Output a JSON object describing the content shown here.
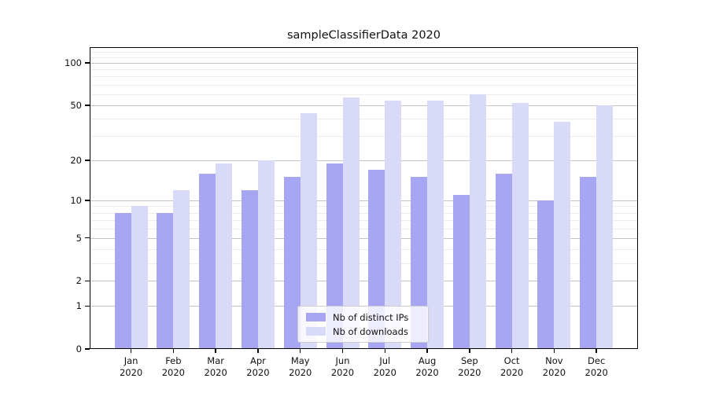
{
  "title": "sampleClassifierData 2020",
  "chart_data": {
    "type": "bar",
    "title": "sampleClassifierData 2020",
    "categories": [
      "Jan 2020",
      "Feb 2020",
      "Mar 2020",
      "Apr 2020",
      "May 2020",
      "Jun 2020",
      "Jul 2020",
      "Aug 2020",
      "Sep 2020",
      "Oct 2020",
      "Nov 2020",
      "Dec 2020"
    ],
    "months": [
      "Jan",
      "Feb",
      "Mar",
      "Apr",
      "May",
      "Jun",
      "Jul",
      "Aug",
      "Sep",
      "Oct",
      "Nov",
      "Dec"
    ],
    "year": "2020",
    "series": [
      {
        "name": "Nb of distinct IPs",
        "color": "#a6a6f3",
        "values": [
          8,
          8,
          16,
          12,
          15,
          19,
          17,
          15,
          11,
          16,
          10,
          15
        ]
      },
      {
        "name": "Nb of downloads",
        "color": "#d9d9f8",
        "values": [
          9,
          12,
          19,
          20,
          44,
          57,
          54,
          54,
          60,
          52,
          38,
          50
        ]
      }
    ],
    "xlabel": "",
    "ylabel": "",
    "yscale": "symlog (position = ln(1+y))",
    "ylim": [
      0,
      130
    ],
    "y_major_ticks": [
      0,
      1,
      2,
      5,
      10,
      20,
      50,
      100
    ],
    "y_minor_gridlines": [
      3,
      4,
      6,
      7,
      8,
      9,
      30,
      40,
      60,
      70,
      80,
      90,
      110,
      120
    ],
    "grid": "horizontal major and minor gridlines",
    "legend_position": "lower center"
  },
  "colors": {
    "background": "#ffffff",
    "axis": "#000000",
    "major_grid": "#c3c3c3",
    "minor_grid": "#ebebeb",
    "bar_distinct_ips": "#a6a6f3",
    "bar_downloads": "#d9d9f8"
  }
}
